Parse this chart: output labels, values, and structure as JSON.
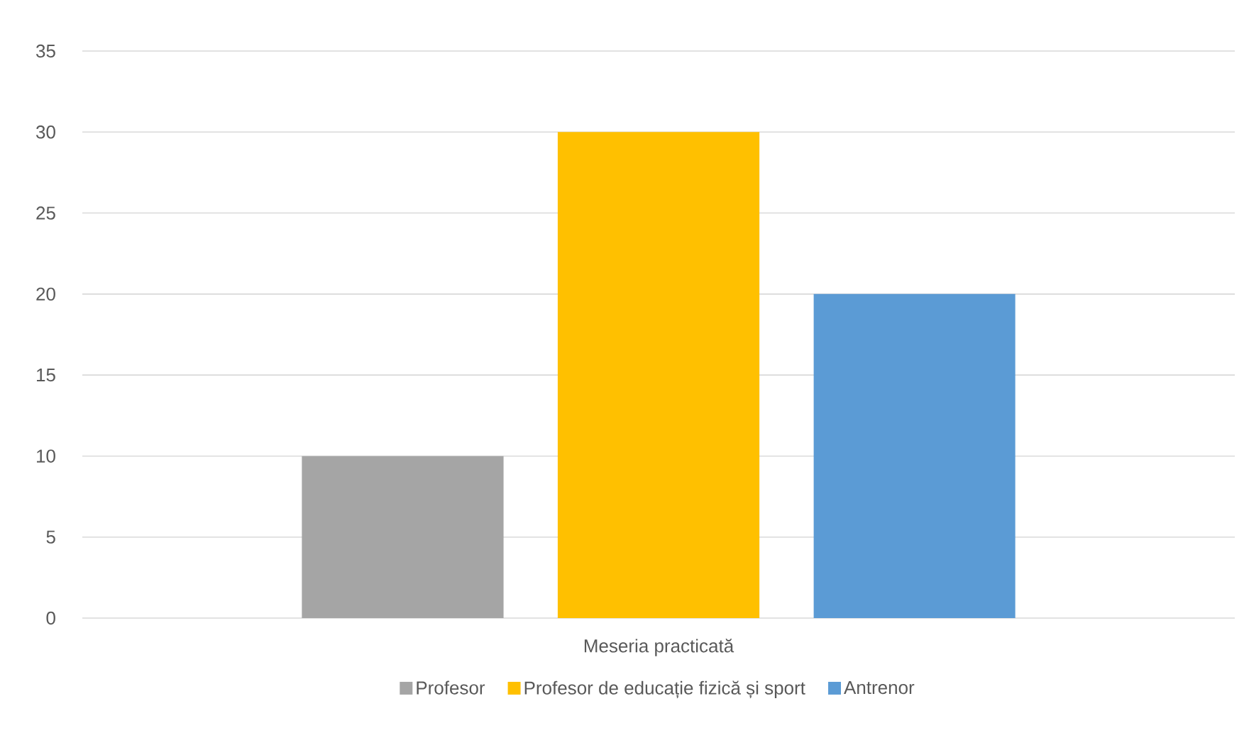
{
  "chart_data": {
    "type": "bar",
    "categories": [
      "Meseria practicată"
    ],
    "series": [
      {
        "name": "Profesor",
        "color": "#a5a5a5",
        "values": [
          10
        ]
      },
      {
        "name": "Profesor de educație fizică și sport",
        "color": "#ffc000",
        "values": [
          30
        ]
      },
      {
        "name": "Antrenor",
        "color": "#5b9bd5",
        "values": [
          20
        ]
      }
    ],
    "ylim": [
      0,
      35
    ],
    "yticks": [
      0,
      5,
      10,
      15,
      20,
      25,
      30,
      35
    ],
    "grid": "y",
    "legend": "bottom"
  }
}
